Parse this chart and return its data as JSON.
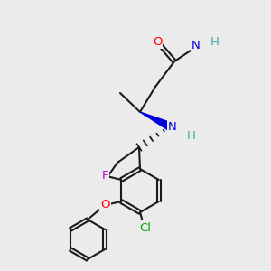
{
  "bg_color": "#ebebeb",
  "bond_color": "#1a1a1a",
  "atoms": {
    "O": {
      "color": "#ff0000"
    },
    "N": {
      "color": "#0000dd"
    },
    "F": {
      "color": "#cc00cc"
    },
    "Cl": {
      "color": "#00aa00"
    },
    "H": {
      "color": "#44aaaa"
    }
  },
  "lw": 1.5,
  "fontsize": 9.5
}
